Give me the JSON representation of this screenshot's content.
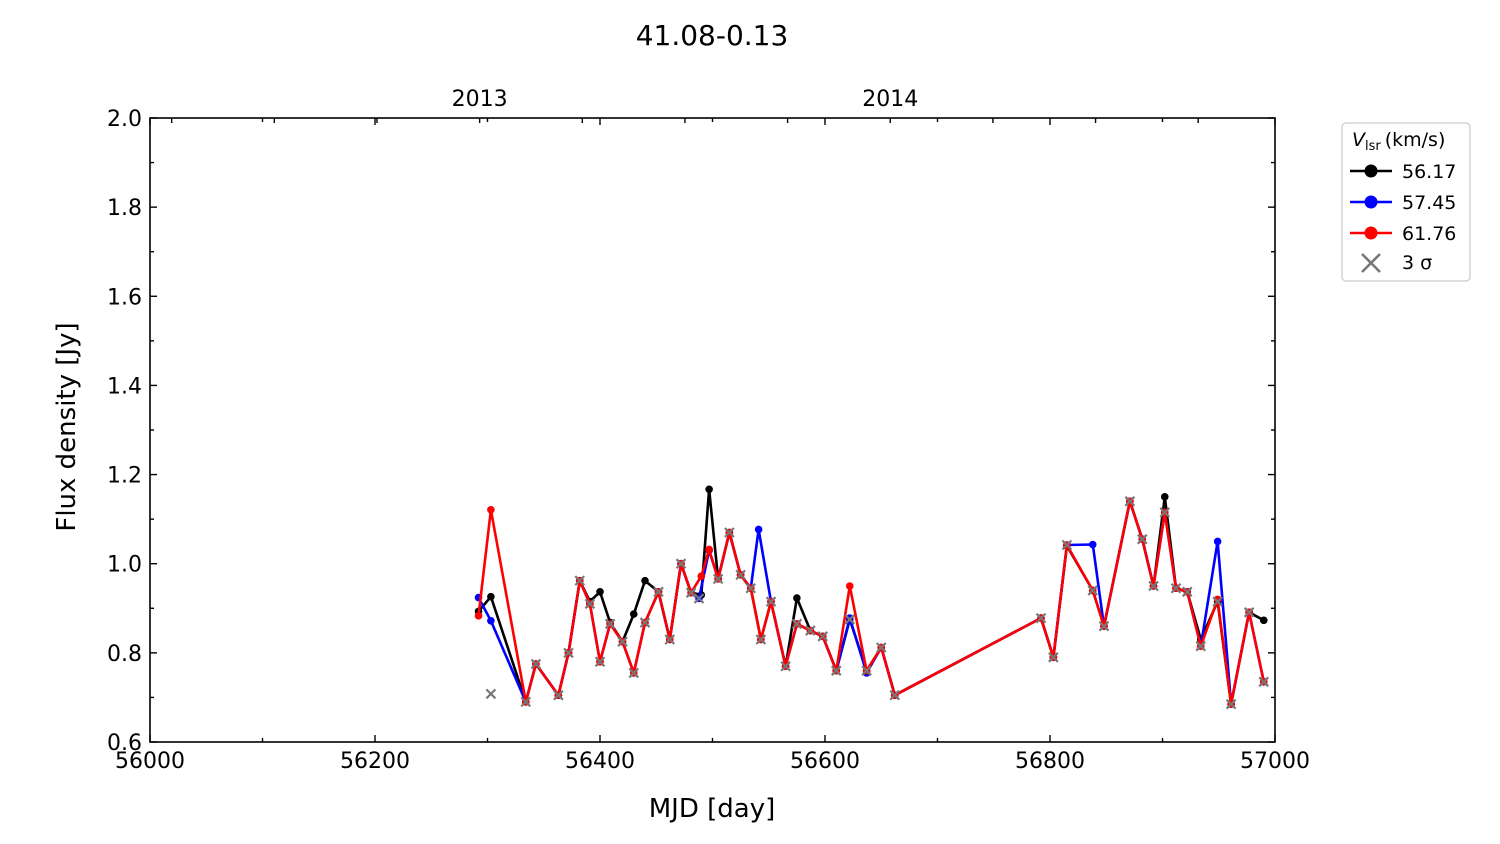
{
  "chart_data": {
    "type": "line",
    "title": "41.08-0.13",
    "xlabel": "MJD [day]",
    "ylabel": "Flux density [Jy]",
    "xlim": [
      56000,
      57000
    ],
    "ylim": [
      0.6,
      2.0
    ],
    "x_ticks": [
      56000,
      56200,
      56400,
      56600,
      56800,
      57000
    ],
    "y_ticks": [
      0.6,
      0.8,
      1.0,
      1.2,
      1.4,
      1.6,
      1.8,
      2.0
    ],
    "top_axis": {
      "ticks": [
        {
          "label": "2013",
          "mjd": 56293
        },
        {
          "label": "2014",
          "mjd": 56658
        }
      ]
    },
    "grid": false,
    "legend": {
      "placement": "outside-right-top",
      "title_main": "V",
      "title_sub": "lsr",
      "title_unit": "(km/s)",
      "sigma_label": "3 σ"
    },
    "series": [
      {
        "name": "56.17",
        "color": "#000000",
        "x": [
          56292,
          56303,
          56334,
          56343,
          56363,
          56372,
          56382,
          56391,
          56400,
          56409,
          56420,
          56430,
          56440,
          56452,
          56462,
          56472,
          56481,
          56490,
          56497,
          56505,
          56515,
          56525,
          56534,
          56543,
          56552,
          56565,
          56575,
          56587,
          56598,
          56610,
          56622,
          56637,
          56650,
          56662,
          56792,
          56803,
          56815,
          56838,
          56848,
          56871,
          56882,
          56892,
          56902,
          56912,
          56922,
          56934,
          56949,
          56961,
          56977,
          56990
        ],
        "y": [
          0.893,
          0.926,
          0.69,
          0.775,
          0.705,
          0.8,
          0.962,
          0.915,
          0.937,
          0.868,
          0.825,
          0.887,
          0.962,
          0.937,
          0.83,
          1.0,
          0.935,
          0.93,
          1.167,
          0.966,
          1.07,
          0.975,
          0.945,
          0.83,
          0.915,
          0.77,
          0.923,
          0.85,
          0.837,
          0.76,
          0.875,
          0.76,
          0.812,
          0.705,
          0.878,
          0.79,
          1.04,
          0.94,
          0.86,
          1.14,
          1.055,
          0.95,
          1.15,
          0.945,
          0.937,
          0.83,
          0.915,
          0.685,
          0.891,
          0.873
        ]
      },
      {
        "name": "57.45",
        "color": "#0000ff",
        "x": [
          56292,
          56303,
          56334,
          56343,
          56363,
          56372,
          56382,
          56391,
          56400,
          56409,
          56420,
          56430,
          56440,
          56452,
          56462,
          56472,
          56481,
          56488,
          56497,
          56505,
          56515,
          56525,
          56534,
          56541,
          56552,
          56565,
          56575,
          56587,
          56598,
          56610,
          56622,
          56637,
          56650,
          56662,
          56792,
          56803,
          56815,
          56838,
          56848,
          56871,
          56882,
          56892,
          56902,
          56912,
          56922,
          56934,
          56949,
          56961,
          56977,
          56990
        ],
        "y": [
          0.924,
          0.872,
          0.69,
          0.775,
          0.705,
          0.8,
          0.962,
          0.91,
          0.78,
          0.865,
          0.825,
          0.755,
          0.868,
          0.937,
          0.83,
          1.0,
          0.935,
          0.922,
          1.03,
          0.966,
          1.07,
          0.975,
          0.945,
          1.077,
          0.915,
          0.77,
          0.865,
          0.85,
          0.837,
          0.76,
          0.878,
          0.755,
          0.812,
          0.705,
          0.878,
          0.79,
          1.042,
          1.043,
          0.86,
          1.14,
          1.055,
          0.95,
          1.115,
          0.945,
          0.937,
          0.815,
          1.05,
          0.685,
          0.891,
          0.735
        ]
      },
      {
        "name": "61.76",
        "color": "#ff0000",
        "x": [
          56292,
          56303,
          56334,
          56343,
          56363,
          56372,
          56382,
          56391,
          56400,
          56409,
          56420,
          56430,
          56440,
          56452,
          56462,
          56472,
          56481,
          56490,
          56497,
          56505,
          56515,
          56525,
          56534,
          56543,
          56552,
          56565,
          56575,
          56587,
          56598,
          56610,
          56622,
          56637,
          56650,
          56662,
          56792,
          56803,
          56815,
          56838,
          56848,
          56871,
          56882,
          56892,
          56902,
          56912,
          56922,
          56934,
          56949,
          56961,
          56977,
          56990
        ],
        "y": [
          0.883,
          1.121,
          0.69,
          0.775,
          0.705,
          0.8,
          0.962,
          0.91,
          0.78,
          0.865,
          0.825,
          0.755,
          0.868,
          0.937,
          0.83,
          1.0,
          0.935,
          0.972,
          1.032,
          0.966,
          1.07,
          0.975,
          0.945,
          0.83,
          0.915,
          0.77,
          0.865,
          0.85,
          0.837,
          0.76,
          0.95,
          0.76,
          0.812,
          0.705,
          0.878,
          0.79,
          1.042,
          0.94,
          0.86,
          1.14,
          1.055,
          0.95,
          1.115,
          0.945,
          0.937,
          0.815,
          0.92,
          0.685,
          0.891,
          0.735
        ]
      }
    ],
    "sigma_markers": {
      "color": "#777777",
      "x": [
        56303,
        56334,
        56343,
        56363,
        56372,
        56382,
        56391,
        56400,
        56409,
        56420,
        56430,
        56440,
        56452,
        56462,
        56472,
        56481,
        56488,
        56505,
        56515,
        56525,
        56534,
        56543,
        56552,
        56565,
        56575,
        56587,
        56598,
        56610,
        56622,
        56637,
        56650,
        56662,
        56792,
        56803,
        56815,
        56838,
        56848,
        56871,
        56882,
        56892,
        56902,
        56912,
        56922,
        56934,
        56949,
        56961,
        56977,
        56990
      ],
      "y": [
        0.708,
        0.69,
        0.775,
        0.705,
        0.8,
        0.962,
        0.91,
        0.78,
        0.865,
        0.825,
        0.755,
        0.868,
        0.937,
        0.83,
        1.0,
        0.935,
        0.922,
        0.966,
        1.07,
        0.975,
        0.945,
        0.83,
        0.915,
        0.77,
        0.865,
        0.85,
        0.837,
        0.76,
        0.875,
        0.76,
        0.812,
        0.705,
        0.878,
        0.79,
        1.042,
        0.94,
        0.86,
        1.14,
        1.055,
        0.95,
        1.115,
        0.945,
        0.937,
        0.815,
        0.915,
        0.685,
        0.891,
        0.735
      ]
    }
  }
}
